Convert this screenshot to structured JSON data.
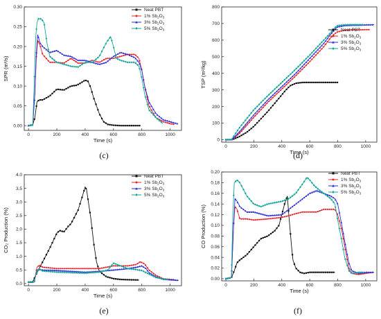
{
  "colors": {
    "neat": "#111111",
    "p1": "#e8202a",
    "p3": "#2a2ad8",
    "p5": "#13a69a"
  },
  "legend_entries": [
    {
      "base": "Neat PBT",
      "sub": "",
      "tail": "",
      "color": "#111111",
      "marker": "square"
    },
    {
      "base": "1% Sb",
      "sub": "2",
      "tail": "O",
      "sub2": "3",
      "color": "#e8202a",
      "marker": "circle"
    },
    {
      "base": "3% Sb",
      "sub": "2",
      "tail": "O",
      "sub2": "3",
      "color": "#2a2ad8",
      "marker": "triangle"
    },
    {
      "base": "5% Sb",
      "sub": "2",
      "tail": "O",
      "sub2": "3",
      "color": "#13a69a",
      "marker": "diamond"
    }
  ],
  "chart_data": [
    {
      "panel_label": "(c)",
      "type": "line",
      "xlabel": "Time (s)",
      "ylabel": "SPR (m²/s)",
      "xlim": [
        -30,
        1080
      ],
      "ylim": [
        -0.012,
        0.3
      ],
      "xticks": [
        0,
        200,
        400,
        600,
        800,
        1000
      ],
      "yticks": [
        0.0,
        0.05,
        0.1,
        0.15,
        0.2,
        0.25,
        0.3
      ],
      "ytick_labels": [
        "0.00",
        "0.05",
        "0.10",
        "0.15",
        "0.20",
        "0.25",
        "0.30"
      ],
      "series": [
        {
          "name": "Neat PBT",
          "color": "#111111",
          "x": [
            0,
            30,
            45,
            60,
            75,
            100,
            150,
            200,
            250,
            300,
            340,
            370,
            400,
            420,
            440,
            460,
            480,
            500,
            530,
            560,
            600,
            650,
            700,
            750,
            790
          ],
          "y": [
            0,
            0.002,
            0.02,
            0.06,
            0.065,
            0.065,
            0.075,
            0.092,
            0.09,
            0.1,
            0.102,
            0.108,
            0.115,
            0.112,
            0.095,
            0.07,
            0.05,
            0.03,
            0.01,
            0.003,
            0.001,
            0,
            0,
            0,
            0
          ]
        },
        {
          "name": "1% Sb2O3",
          "color": "#e8202a",
          "x": [
            0,
            30,
            45,
            55,
            65,
            80,
            100,
            150,
            200,
            250,
            300,
            350,
            400,
            450,
            500,
            550,
            600,
            650,
            700,
            750,
            780,
            800,
            820,
            850,
            900,
            950,
            1000,
            1030
          ],
          "y": [
            0,
            0.002,
            0.08,
            0.17,
            0.215,
            0.205,
            0.18,
            0.16,
            0.16,
            0.158,
            0.17,
            0.158,
            0.158,
            0.165,
            0.16,
            0.17,
            0.17,
            0.175,
            0.18,
            0.18,
            0.17,
            0.14,
            0.1,
            0.05,
            0.02,
            0.01,
            0.005,
            0.003
          ]
        },
        {
          "name": "3% Sb2O3",
          "color": "#2a2ad8",
          "x": [
            0,
            30,
            45,
            55,
            65,
            80,
            100,
            150,
            200,
            250,
            300,
            350,
            400,
            450,
            500,
            550,
            600,
            650,
            700,
            750,
            780,
            800,
            820,
            850,
            900,
            950,
            1000,
            1050
          ],
          "y": [
            0,
            0.002,
            0.08,
            0.18,
            0.23,
            0.21,
            0.2,
            0.185,
            0.19,
            0.178,
            0.175,
            0.165,
            0.165,
            0.16,
            0.155,
            0.16,
            0.175,
            0.185,
            0.18,
            0.172,
            0.16,
            0.14,
            0.1,
            0.06,
            0.03,
            0.015,
            0.01,
            0.005
          ]
        },
        {
          "name": "5% Sb2O3",
          "color": "#13a69a",
          "x": [
            0,
            30,
            40,
            50,
            60,
            70,
            90,
            110,
            130,
            150,
            200,
            250,
            300,
            350,
            400,
            450,
            500,
            550,
            580,
            600,
            620,
            650,
            700,
            750,
            780,
            800,
            820,
            850,
            900,
            950
          ],
          "y": [
            0,
            0.002,
            0.1,
            0.22,
            0.26,
            0.27,
            0.27,
            0.26,
            0.21,
            0.175,
            0.16,
            0.155,
            0.15,
            0.148,
            0.16,
            0.16,
            0.175,
            0.21,
            0.225,
            0.2,
            0.17,
            0.165,
            0.16,
            0.16,
            0.15,
            0.12,
            0.08,
            0.04,
            0.02,
            0.005
          ]
        }
      ]
    },
    {
      "panel_label": "(d)",
      "type": "line",
      "xlabel": "Time (s)",
      "ylabel": "TSP (m²/kg)",
      "xlim": [
        -30,
        1080
      ],
      "ylim": [
        -15,
        800
      ],
      "xticks": [
        0,
        200,
        400,
        600,
        800,
        1000
      ],
      "yticks": [
        0,
        100,
        200,
        300,
        400,
        500,
        600,
        700,
        800
      ],
      "ytick_labels": [
        "0",
        "100",
        "200",
        "300",
        "400",
        "500",
        "600",
        "700",
        "800"
      ],
      "series": [
        {
          "name": "Neat PBT",
          "color": "#111111",
          "x": [
            0,
            40,
            60,
            100,
            150,
            200,
            250,
            300,
            350,
            400,
            430,
            460,
            500,
            550,
            600,
            650,
            700,
            750,
            800
          ],
          "y": [
            0,
            0,
            5,
            20,
            45,
            80,
            125,
            170,
            220,
            270,
            300,
            325,
            340,
            345,
            345,
            345,
            345,
            345,
            345
          ]
        },
        {
          "name": "1% Sb2O3",
          "color": "#e8202a",
          "x": [
            0,
            40,
            60,
            100,
            200,
            300,
            400,
            500,
            600,
            700,
            750,
            780,
            800,
            850,
            900,
            950,
            1000,
            1030
          ],
          "y": [
            0,
            0,
            12,
            40,
            135,
            225,
            305,
            385,
            470,
            560,
            615,
            640,
            650,
            660,
            662,
            662,
            663,
            663
          ]
        },
        {
          "name": "3% Sb2O3",
          "color": "#2a2ad8",
          "x": [
            0,
            40,
            60,
            100,
            200,
            300,
            400,
            500,
            600,
            700,
            750,
            780,
            800,
            850,
            900,
            950,
            1000,
            1060
          ],
          "y": [
            0,
            0,
            15,
            50,
            150,
            240,
            320,
            400,
            490,
            580,
            635,
            665,
            680,
            688,
            690,
            690,
            692,
            693
          ]
        },
        {
          "name": "5% Sb2O3",
          "color": "#13a69a",
          "x": [
            0,
            40,
            55,
            100,
            200,
            300,
            400,
            500,
            600,
            700,
            750,
            780,
            800,
            850,
            900,
            950,
            980
          ],
          "y": [
            0,
            0,
            20,
            75,
            180,
            265,
            345,
            425,
            510,
            600,
            645,
            675,
            688,
            692,
            693,
            693,
            693
          ]
        }
      ]
    },
    {
      "panel_label": "(e)",
      "type": "line",
      "xlabel": "Time (s)",
      "ylabel": "CO₂ Production (%)",
      "xlim": [
        -30,
        1080
      ],
      "ylim": [
        -0.08,
        4.0
      ],
      "xticks": [
        0,
        200,
        400,
        600,
        800,
        1000
      ],
      "yticks": [
        0.0,
        0.5,
        1.0,
        1.5,
        2.0,
        2.5,
        3.0,
        3.5,
        4.0
      ],
      "ytick_labels": [
        "0.0",
        "0.5",
        "1.0",
        "1.5",
        "2.0",
        "2.5",
        "3.0",
        "3.5",
        "4.0"
      ],
      "series": [
        {
          "name": "Neat PBT",
          "color": "#111111",
          "x": [
            0,
            30,
            50,
            70,
            100,
            150,
            200,
            220,
            250,
            280,
            300,
            350,
            380,
            400,
            410,
            420,
            440,
            460,
            480,
            500,
            550,
            600,
            650,
            700,
            780
          ],
          "y": [
            0.05,
            0.06,
            0.3,
            0.5,
            0.8,
            1.3,
            1.85,
            1.95,
            1.9,
            2.1,
            2.2,
            2.7,
            3.2,
            3.55,
            3.45,
            3.1,
            2.4,
            1.5,
            0.8,
            0.45,
            0.25,
            0.18,
            0.15,
            0.14,
            0.13
          ]
        },
        {
          "name": "1% Sb2O3",
          "color": "#e8202a",
          "x": [
            0,
            40,
            60,
            80,
            100,
            200,
            300,
            400,
            500,
            600,
            650,
            700,
            760,
            790,
            820,
            850,
            900,
            950,
            1000,
            1030
          ],
          "y": [
            0.05,
            0.05,
            0.6,
            0.68,
            0.6,
            0.55,
            0.55,
            0.55,
            0.55,
            0.65,
            0.65,
            0.65,
            0.7,
            0.8,
            0.72,
            0.5,
            0.3,
            0.18,
            0.15,
            0.14
          ]
        },
        {
          "name": "3% Sb2O3",
          "color": "#2a2ad8",
          "x": [
            0,
            40,
            60,
            80,
            100,
            200,
            300,
            400,
            500,
            600,
            700,
            760,
            800,
            830,
            850,
            900,
            950,
            1000,
            1060
          ],
          "y": [
            0.05,
            0.05,
            0.5,
            0.52,
            0.5,
            0.48,
            0.45,
            0.42,
            0.45,
            0.5,
            0.55,
            0.6,
            0.65,
            0.55,
            0.4,
            0.25,
            0.16,
            0.14,
            0.12
          ]
        },
        {
          "name": "5% Sb2O3",
          "color": "#13a69a",
          "x": [
            0,
            40,
            60,
            80,
            100,
            200,
            300,
            400,
            500,
            560,
            600,
            700,
            750,
            800,
            830,
            870,
            900,
            950,
            980
          ],
          "y": [
            0.05,
            0.05,
            0.48,
            0.52,
            0.46,
            0.42,
            0.4,
            0.38,
            0.42,
            0.5,
            0.75,
            0.55,
            0.52,
            0.48,
            0.4,
            0.3,
            0.22,
            0.17,
            0.15
          ]
        }
      ]
    },
    {
      "panel_label": "(f)",
      "type": "line",
      "xlabel": "Time (s)",
      "ylabel": "CO Production (%)",
      "xlim": [
        -30,
        1080
      ],
      "ylim": [
        -0.004,
        0.2
      ],
      "xticks": [
        0,
        200,
        400,
        600,
        800,
        1000
      ],
      "yticks": [
        0.0,
        0.02,
        0.04,
        0.06,
        0.08,
        0.1,
        0.12,
        0.14,
        0.16,
        0.18,
        0.2
      ],
      "ytick_labels": [
        "0.00",
        "0.02",
        "0.04",
        "0.06",
        "0.08",
        "0.10",
        "0.12",
        "0.14",
        "0.16",
        "0.18",
        "0.20"
      ],
      "series": [
        {
          "name": "Neat PBT",
          "color": "#111111",
          "x": [
            0,
            40,
            60,
            80,
            100,
            150,
            200,
            250,
            300,
            350,
            380,
            400,
            420,
            440,
            450,
            460,
            470,
            480,
            500,
            530,
            560,
            600,
            650,
            700,
            780
          ],
          "y": [
            0,
            0.002,
            0.015,
            0.03,
            0.035,
            0.045,
            0.06,
            0.075,
            0.08,
            0.09,
            0.1,
            0.12,
            0.14,
            0.155,
            0.12,
            0.09,
            0.06,
            0.035,
            0.02,
            0.012,
            0.01,
            0.012,
            0.012,
            0.012,
            0.012
          ]
        },
        {
          "name": "1% Sb2O3",
          "color": "#e8202a",
          "x": [
            0,
            40,
            55,
            65,
            80,
            100,
            150,
            200,
            300,
            400,
            450,
            500,
            550,
            600,
            650,
            700,
            750,
            780,
            800,
            830,
            850,
            880,
            900,
            950,
            1000,
            1050
          ],
          "y": [
            0,
            0.002,
            0.1,
            0.135,
            0.13,
            0.112,
            0.112,
            0.11,
            0.112,
            0.115,
            0.118,
            0.122,
            0.125,
            0.125,
            0.125,
            0.13,
            0.13,
            0.13,
            0.12,
            0.09,
            0.06,
            0.02,
            0.01,
            0.008,
            0.01,
            0.012
          ]
        },
        {
          "name": "3% Sb2O3",
          "color": "#2a2ad8",
          "x": [
            0,
            40,
            55,
            65,
            80,
            100,
            150,
            200,
            300,
            400,
            450,
            500,
            550,
            600,
            650,
            700,
            750,
            780,
            800,
            830,
            850,
            880,
            900,
            950,
            1000,
            1060
          ],
          "y": [
            0,
            0.002,
            0.1,
            0.15,
            0.145,
            0.135,
            0.125,
            0.125,
            0.118,
            0.12,
            0.13,
            0.14,
            0.15,
            0.16,
            0.165,
            0.16,
            0.155,
            0.15,
            0.14,
            0.1,
            0.07,
            0.03,
            0.015,
            0.01,
            0.012,
            0.012
          ]
        },
        {
          "name": "5% Sb2O3",
          "color": "#13a69a",
          "x": [
            0,
            40,
            50,
            60,
            80,
            100,
            150,
            200,
            250,
            300,
            400,
            450,
            500,
            550,
            580,
            600,
            630,
            660,
            700,
            750,
            780,
            800,
            830,
            850,
            880,
            900,
            950,
            980
          ],
          "y": [
            0,
            0.002,
            0.12,
            0.18,
            0.185,
            0.18,
            0.155,
            0.14,
            0.135,
            0.14,
            0.145,
            0.15,
            0.16,
            0.178,
            0.19,
            0.185,
            0.175,
            0.168,
            0.16,
            0.15,
            0.14,
            0.11,
            0.07,
            0.04,
            0.015,
            0.01,
            0.012,
            0.012
          ]
        }
      ]
    }
  ]
}
